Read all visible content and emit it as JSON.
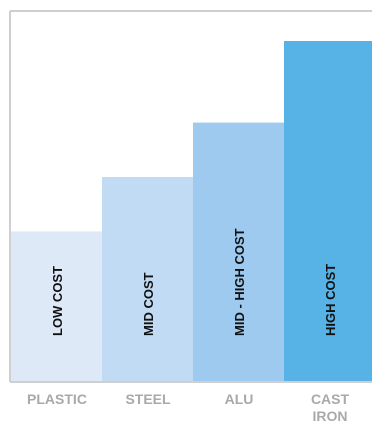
{
  "chart_data": {
    "type": "bar",
    "title": "",
    "xlabel": "",
    "ylabel": "",
    "ylim": [
      0,
      100
    ],
    "grid": false,
    "categories": [
      [
        "PLASTIC"
      ],
      [
        "STEEL"
      ],
      [
        "ALU"
      ],
      [
        "CAST",
        "IRON"
      ]
    ],
    "values": [
      44,
      60,
      76,
      100
    ],
    "data_labels": [
      "LOW COST",
      "MID COST",
      "MID - HIGH COST",
      "HIGH COST"
    ],
    "colors": [
      "#dde9f7",
      "#c0dbf3",
      "#9dcaee",
      "#57b3e6"
    ],
    "frame_color": "#cfcfcf",
    "tick_label_color": "#a9a9a9",
    "data_label_color": "#111111"
  }
}
